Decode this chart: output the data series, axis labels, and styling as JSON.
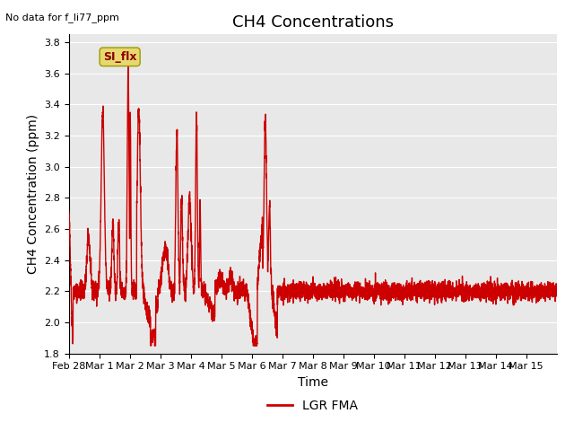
{
  "title": "CH4 Concentrations",
  "top_left_text": "No data for f_li77_ppm",
  "ylabel": "CH4 Concentration (ppm)",
  "xlabel": "Time",
  "ylim": [
    1.8,
    3.85
  ],
  "line_color": "#cc0000",
  "line_width": 1.0,
  "legend_label": "LGR FMA",
  "legend_line_color": "#cc0000",
  "bg_color": "#e8e8e8",
  "fig_bg_color": "#ffffff",
  "grid_color": "#ffffff",
  "si_flx_box_color": "#e8d870",
  "si_flx_text_color": "#8b0000",
  "tick_labels": [
    "Feb 28",
    "Mar 1",
    "Mar 2",
    "Mar 3",
    "Mar 4",
    "Mar 5",
    "Mar 6",
    "Mar 7",
    "Mar 8",
    "Mar 9",
    "Mar 10",
    "Mar 11",
    "Mar 12",
    "Mar 13",
    "Mar 14",
    "Mar 15"
  ],
  "yticks": [
    1.8,
    2.0,
    2.2,
    2.4,
    2.6,
    2.8,
    3.0,
    3.2,
    3.4,
    3.6,
    3.8
  ],
  "title_fontsize": 13,
  "label_fontsize": 10,
  "tick_fontsize": 8
}
